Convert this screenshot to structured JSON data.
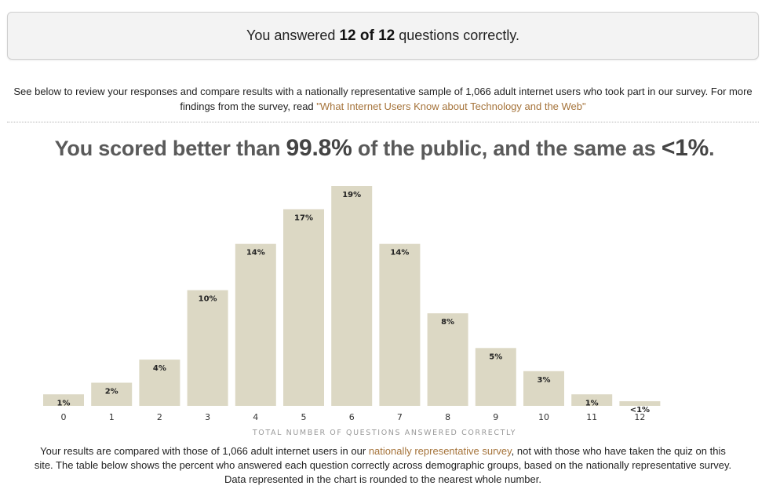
{
  "result": {
    "prefix": "You answered",
    "score": "12 of 12",
    "suffix": "questions correctly."
  },
  "intro": {
    "text": "See below to review your responses and compare results with a nationally representative sample of 1,066 adult internet users who took part in our survey. For more findings from the survey, read ",
    "link": "\"What Internet Users Know about Technology and the Web\""
  },
  "headline": {
    "part1": "You scored better than ",
    "pct1": "99.8%",
    "part2": " of the public, and the same as ",
    "pct2": "<1%",
    "part3": "."
  },
  "chart_data": {
    "type": "bar",
    "categories": [
      "0",
      "1",
      "2",
      "3",
      "4",
      "5",
      "6",
      "7",
      "8",
      "9",
      "10",
      "11",
      "12"
    ],
    "values": [
      1,
      2,
      4,
      10,
      14,
      17,
      19,
      14,
      8,
      5,
      3,
      1,
      0.4
    ],
    "data_labels": [
      "1%",
      "2%",
      "4%",
      "10%",
      "14%",
      "17%",
      "19%",
      "14%",
      "8%",
      "5%",
      "3%",
      "1%",
      "<1%"
    ],
    "xlabel": "TOTAL NUMBER OF QUESTIONS ANSWERED CORRECTLY",
    "ylabel": "",
    "bar_color": "#dcd8c4",
    "ylim": [
      0,
      19
    ]
  },
  "note": {
    "text1": "Your results are compared with those of 1,066 adult internet users in our ",
    "link": "nationally representative survey",
    "text2": ", not with those who have taken the quiz on this site. The table below shows the percent who answered each question correctly across demographic groups, based on the nationally representative survey. Data represented in the chart is rounded to the nearest whole number."
  },
  "colors": {
    "link": "#a5733a",
    "headline": "#5a5a5a",
    "axis_label": "#9a9a9a"
  }
}
